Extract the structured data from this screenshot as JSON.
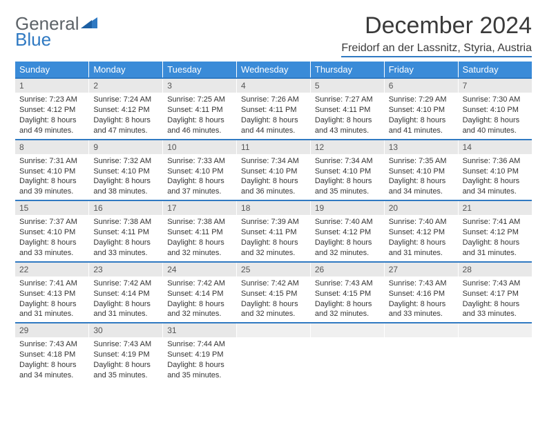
{
  "brand": {
    "word1": "General",
    "word2": "Blue",
    "color_word2": "#2f79c2"
  },
  "title": "December 2024",
  "location": "Freidorf an der Lassnitz, Styria, Austria",
  "colors": {
    "header_bg": "#3a8bd8",
    "rule": "#2f79c2",
    "daynum_bg": "#e8e8e8",
    "text": "#333333"
  },
  "weekdays": [
    "Sunday",
    "Monday",
    "Tuesday",
    "Wednesday",
    "Thursday",
    "Friday",
    "Saturday"
  ],
  "weeks": [
    [
      {
        "n": "1",
        "sr": "7:23 AM",
        "ss": "4:12 PM",
        "dl": "8 hours and 49 minutes."
      },
      {
        "n": "2",
        "sr": "7:24 AM",
        "ss": "4:12 PM",
        "dl": "8 hours and 47 minutes."
      },
      {
        "n": "3",
        "sr": "7:25 AM",
        "ss": "4:11 PM",
        "dl": "8 hours and 46 minutes."
      },
      {
        "n": "4",
        "sr": "7:26 AM",
        "ss": "4:11 PM",
        "dl": "8 hours and 44 minutes."
      },
      {
        "n": "5",
        "sr": "7:27 AM",
        "ss": "4:11 PM",
        "dl": "8 hours and 43 minutes."
      },
      {
        "n": "6",
        "sr": "7:29 AM",
        "ss": "4:10 PM",
        "dl": "8 hours and 41 minutes."
      },
      {
        "n": "7",
        "sr": "7:30 AM",
        "ss": "4:10 PM",
        "dl": "8 hours and 40 minutes."
      }
    ],
    [
      {
        "n": "8",
        "sr": "7:31 AM",
        "ss": "4:10 PM",
        "dl": "8 hours and 39 minutes."
      },
      {
        "n": "9",
        "sr": "7:32 AM",
        "ss": "4:10 PM",
        "dl": "8 hours and 38 minutes."
      },
      {
        "n": "10",
        "sr": "7:33 AM",
        "ss": "4:10 PM",
        "dl": "8 hours and 37 minutes."
      },
      {
        "n": "11",
        "sr": "7:34 AM",
        "ss": "4:10 PM",
        "dl": "8 hours and 36 minutes."
      },
      {
        "n": "12",
        "sr": "7:34 AM",
        "ss": "4:10 PM",
        "dl": "8 hours and 35 minutes."
      },
      {
        "n": "13",
        "sr": "7:35 AM",
        "ss": "4:10 PM",
        "dl": "8 hours and 34 minutes."
      },
      {
        "n": "14",
        "sr": "7:36 AM",
        "ss": "4:10 PM",
        "dl": "8 hours and 34 minutes."
      }
    ],
    [
      {
        "n": "15",
        "sr": "7:37 AM",
        "ss": "4:10 PM",
        "dl": "8 hours and 33 minutes."
      },
      {
        "n": "16",
        "sr": "7:38 AM",
        "ss": "4:11 PM",
        "dl": "8 hours and 33 minutes."
      },
      {
        "n": "17",
        "sr": "7:38 AM",
        "ss": "4:11 PM",
        "dl": "8 hours and 32 minutes."
      },
      {
        "n": "18",
        "sr": "7:39 AM",
        "ss": "4:11 PM",
        "dl": "8 hours and 32 minutes."
      },
      {
        "n": "19",
        "sr": "7:40 AM",
        "ss": "4:12 PM",
        "dl": "8 hours and 32 minutes."
      },
      {
        "n": "20",
        "sr": "7:40 AM",
        "ss": "4:12 PM",
        "dl": "8 hours and 31 minutes."
      },
      {
        "n": "21",
        "sr": "7:41 AM",
        "ss": "4:12 PM",
        "dl": "8 hours and 31 minutes."
      }
    ],
    [
      {
        "n": "22",
        "sr": "7:41 AM",
        "ss": "4:13 PM",
        "dl": "8 hours and 31 minutes."
      },
      {
        "n": "23",
        "sr": "7:42 AM",
        "ss": "4:14 PM",
        "dl": "8 hours and 31 minutes."
      },
      {
        "n": "24",
        "sr": "7:42 AM",
        "ss": "4:14 PM",
        "dl": "8 hours and 32 minutes."
      },
      {
        "n": "25",
        "sr": "7:42 AM",
        "ss": "4:15 PM",
        "dl": "8 hours and 32 minutes."
      },
      {
        "n": "26",
        "sr": "7:43 AM",
        "ss": "4:15 PM",
        "dl": "8 hours and 32 minutes."
      },
      {
        "n": "27",
        "sr": "7:43 AM",
        "ss": "4:16 PM",
        "dl": "8 hours and 33 minutes."
      },
      {
        "n": "28",
        "sr": "7:43 AM",
        "ss": "4:17 PM",
        "dl": "8 hours and 33 minutes."
      }
    ],
    [
      {
        "n": "29",
        "sr": "7:43 AM",
        "ss": "4:18 PM",
        "dl": "8 hours and 34 minutes."
      },
      {
        "n": "30",
        "sr": "7:43 AM",
        "ss": "4:19 PM",
        "dl": "8 hours and 35 minutes."
      },
      {
        "n": "31",
        "sr": "7:44 AM",
        "ss": "4:19 PM",
        "dl": "8 hours and 35 minutes."
      },
      null,
      null,
      null,
      null
    ]
  ],
  "labels": {
    "sunrise": "Sunrise:",
    "sunset": "Sunset:",
    "daylight": "Daylight:"
  },
  "typography": {
    "title_fontsize": 34,
    "location_fontsize": 16,
    "weekday_fontsize": 13,
    "cell_fontsize": 11
  }
}
